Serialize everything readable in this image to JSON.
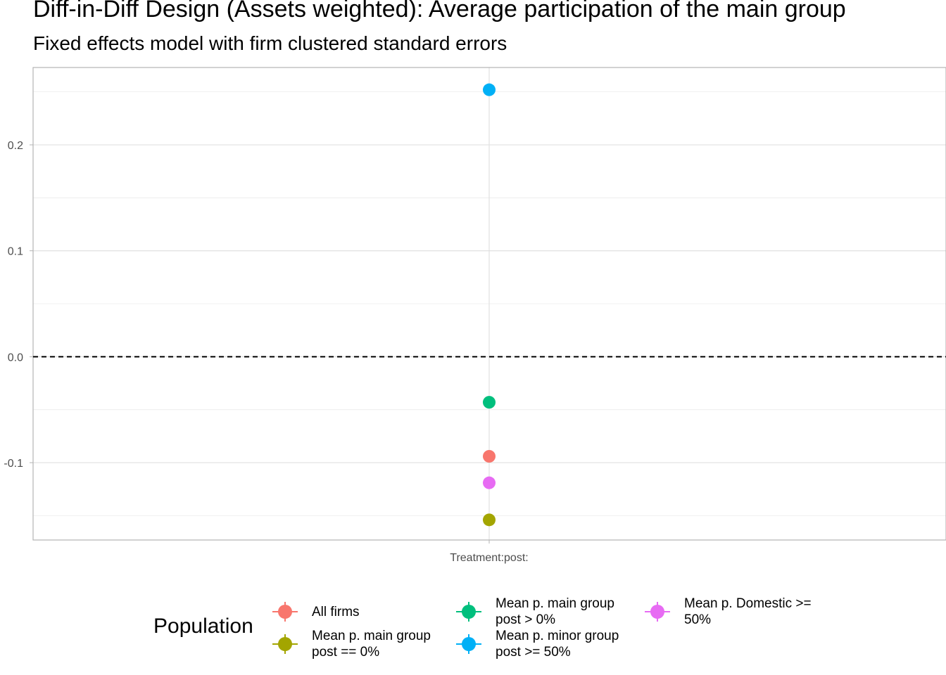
{
  "chart_data": {
    "type": "scatter",
    "title": "Diff-in-Diff Design (Assets weighted): Average participation of the main group",
    "subtitle": "Fixed effects model with firm clustered standard errors",
    "xlabel": "",
    "ylabel": "",
    "categories": [
      "Treatment:post:"
    ],
    "ylim": [
      -0.173,
      0.273
    ],
    "yticks": [
      -0.1,
      0.0,
      0.1,
      0.2
    ],
    "ytick_labels": [
      "-0.1",
      "0.0",
      "0.1",
      "0.2"
    ],
    "reference_line": {
      "y": 0,
      "style": "dashed"
    },
    "grid": true,
    "legend": {
      "title": "Population",
      "position": "bottom"
    },
    "series": [
      {
        "name": "All firms",
        "color": "#F8766D",
        "values": [
          -0.094
        ]
      },
      {
        "name": "Mean p. main group\npost == 0%",
        "color": "#A3A500",
        "values": [
          -0.154
        ]
      },
      {
        "name": "Mean p. main group\npost > 0%",
        "color": "#00BF7D",
        "values": [
          -0.043
        ]
      },
      {
        "name": "Mean p. minor group\npost >= 50%",
        "color": "#00B0F6",
        "values": [
          0.252
        ]
      },
      {
        "name": "Mean p. Domestic >=\n50%",
        "color": "#E76BF3",
        "values": [
          -0.119
        ]
      }
    ]
  }
}
